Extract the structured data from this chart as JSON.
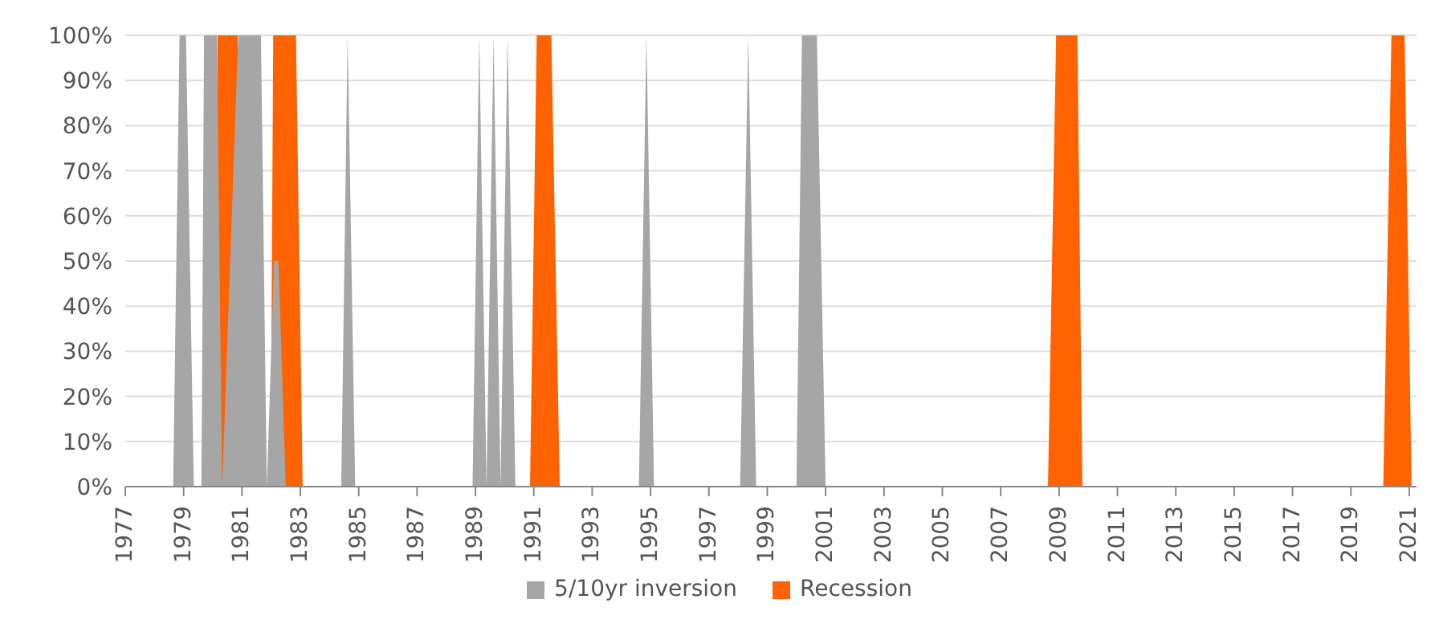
{
  "chart_data": {
    "type": "area",
    "xlim": [
      1977,
      2021.25
    ],
    "xticks": [
      1977,
      1979,
      1981,
      1983,
      1985,
      1987,
      1989,
      1991,
      1993,
      1995,
      1997,
      1999,
      2001,
      2003,
      2005,
      2007,
      2009,
      2011,
      2013,
      2015,
      2017,
      2019,
      2021
    ],
    "ylim": [
      0,
      100
    ],
    "yticks": [
      {
        "value": 0,
        "label": "0%"
      },
      {
        "value": 10,
        "label": "10%"
      },
      {
        "value": 20,
        "label": "20%"
      },
      {
        "value": 30,
        "label": "30%"
      },
      {
        "value": 40,
        "label": "40%"
      },
      {
        "value": 50,
        "label": "50%"
      },
      {
        "value": 60,
        "label": "60%"
      },
      {
        "value": 70,
        "label": "70%"
      },
      {
        "value": 80,
        "label": "80%"
      },
      {
        "value": 90,
        "label": "90%"
      },
      {
        "value": 100,
        "label": "100%"
      }
    ],
    "grid": "y",
    "legend": "bottom",
    "series": [
      {
        "name": "5/10yr inversion",
        "color": "#a6a6a6",
        "x": [
          1978.64,
          1978.86,
          1979.08,
          1979.35,
          1979.61,
          1979.7,
          1980.14,
          1980.32,
          1980.87,
          1981.65,
          1981.85,
          1982.1,
          1982.25,
          1982.5,
          1984.4,
          1984.62,
          1984.88,
          1988.9,
          1989.13,
          1989.38,
          1989.62,
          1989.86,
          1990.1,
          1990.37,
          1994.6,
          1994.86,
          1995.12,
          1998.07,
          1998.35,
          1998.62,
          2000.0,
          2000.19,
          2000.7,
          2001.0
        ],
        "values": [
          0,
          100,
          100,
          0,
          0,
          100,
          100,
          0,
          100,
          100,
          0,
          50,
          50,
          0,
          0,
          100,
          0,
          0,
          100,
          0,
          100,
          0,
          100,
          0,
          0,
          100,
          0,
          0,
          100,
          0,
          0,
          100,
          100,
          0
        ]
      },
      {
        "name": "Recession",
        "color": "#ff6200",
        "x": [
          1980.08,
          1980.16,
          1980.85,
          1980.92,
          1981.98,
          1982.07,
          1982.85,
          1983.08,
          1990.87,
          1991.1,
          1991.6,
          1991.89,
          2008.62,
          2008.9,
          2009.63,
          2009.8,
          2020.11,
          2020.39,
          2020.84,
          2021.08
        ],
        "values": [
          0,
          100,
          100,
          0,
          0,
          100,
          100,
          0,
          0,
          100,
          100,
          0,
          0,
          100,
          100,
          0,
          0,
          100,
          100,
          0
        ]
      }
    ]
  }
}
